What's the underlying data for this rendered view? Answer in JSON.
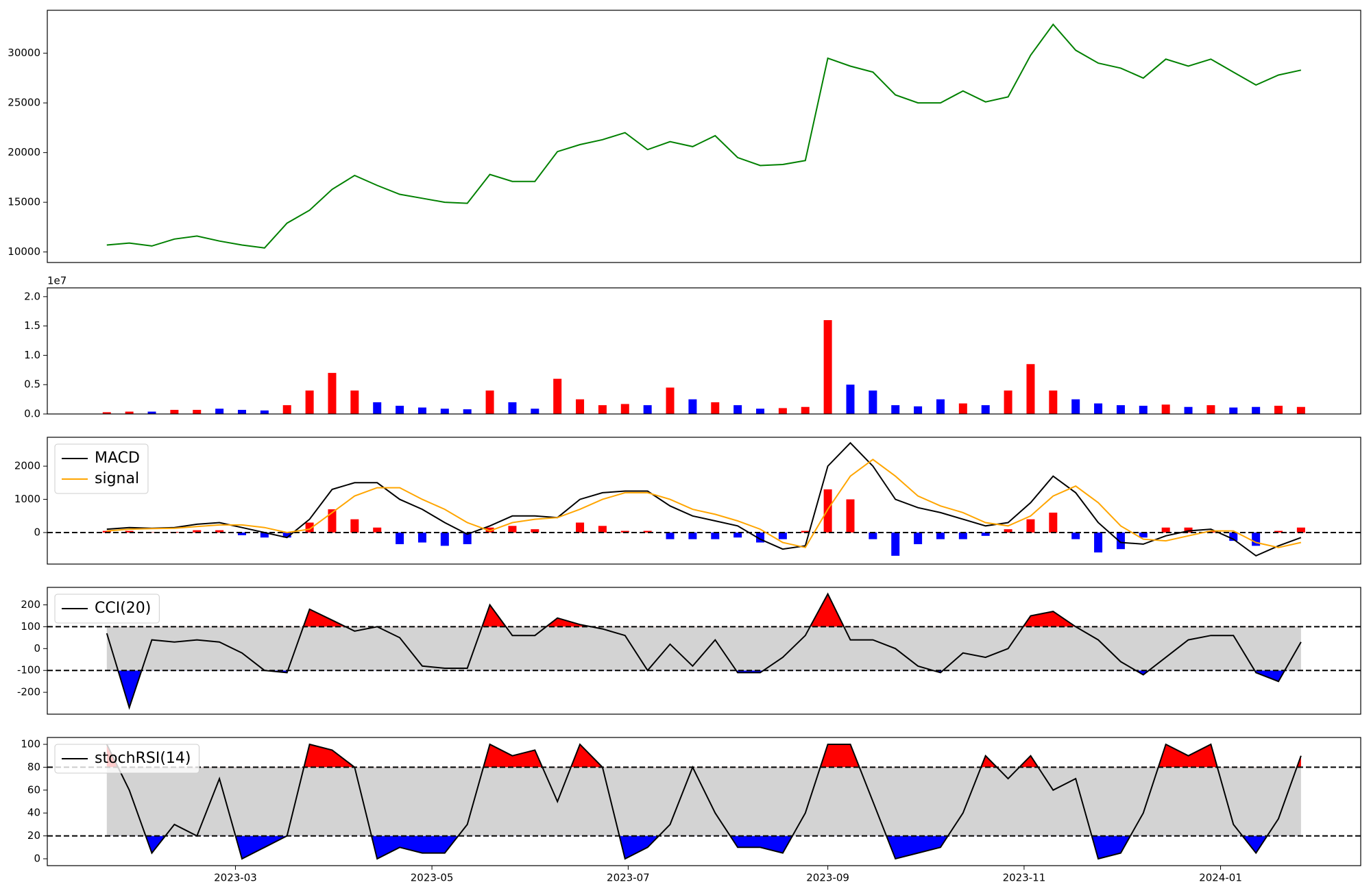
{
  "chart_data": [
    {
      "type": "line",
      "color": "green",
      "values": [
        10700,
        10900,
        10600,
        11300,
        11600,
        11100,
        10700,
        10400,
        12900,
        14200,
        16300,
        17700,
        16700,
        15800,
        15400,
        15000,
        14900,
        17800,
        17100,
        17100,
        20100,
        20800,
        21300,
        22000,
        20300,
        21100,
        20600,
        21700,
        19500,
        18700,
        18800,
        19200,
        29500,
        28700,
        28100,
        25800,
        25000,
        25000,
        26200,
        25100,
        25600,
        29800,
        32900,
        30300,
        29000,
        28500,
        27500,
        29400,
        28700,
        29400,
        28100,
        26800,
        27800,
        28300
      ],
      "xlim": [
        -2.64,
        55.65
      ],
      "ylim": [
        8940,
        34320
      ],
      "yticks": [
        10000,
        15000,
        20000,
        25000,
        30000
      ]
    },
    {
      "type": "bar",
      "offset_label": "1e7",
      "values": [
        300000,
        400000,
        400000,
        700000,
        700000,
        900000,
        700000,
        600000,
        1500000,
        4000000,
        7000000,
        4000000,
        2000000,
        1400000,
        1100000,
        900000,
        800000,
        4000000,
        2000000,
        900000,
        6000000,
        2500000,
        1500000,
        1700000,
        1500000,
        4500000,
        2500000,
        2000000,
        1500000,
        900000,
        1000000,
        1200000,
        16000000,
        5000000,
        4000000,
        1500000,
        1300000,
        2500000,
        1800000,
        1500000,
        4000000,
        8500000,
        4000000,
        2500000,
        1800000,
        1500000,
        1400000,
        1600000,
        1200000,
        1500000,
        1100000,
        1200000,
        1400000,
        1200000
      ],
      "colors": [
        "red",
        "red",
        "blue",
        "red",
        "red",
        "blue",
        "blue",
        "blue",
        "red",
        "red",
        "red",
        "red",
        "blue",
        "blue",
        "blue",
        "blue",
        "blue",
        "red",
        "blue",
        "blue",
        "red",
        "red",
        "red",
        "red",
        "blue",
        "red",
        "blue",
        "red",
        "blue",
        "blue",
        "red",
        "red",
        "red",
        "blue",
        "blue",
        "blue",
        "blue",
        "blue",
        "red",
        "blue",
        "red",
        "red",
        "red",
        "blue",
        "blue",
        "blue",
        "blue",
        "red",
        "blue",
        "red",
        "blue",
        "blue",
        "red",
        "red"
      ],
      "xlim": [
        -2.64,
        55.65
      ],
      "ylim": [
        0,
        21500000
      ],
      "yticks": [
        {
          "value": 0,
          "label": "0.0"
        },
        {
          "value": 5000000,
          "label": "0.5"
        },
        {
          "value": 10000000,
          "label": "1.0"
        },
        {
          "value": 15000000,
          "label": "1.5"
        },
        {
          "value": 20000000,
          "label": "2.0"
        }
      ]
    },
    {
      "type": "macd",
      "legend": "upper left",
      "hlines": [
        0
      ],
      "series": [
        {
          "name": "MACD",
          "color": "black",
          "values": [
            100,
            150,
            130,
            150,
            250,
            300,
            150,
            0,
            -150,
            400,
            1300,
            1500,
            1500,
            1000,
            700,
            300,
            -50,
            200,
            500,
            500,
            450,
            1000,
            1200,
            1250,
            1250,
            800,
            500,
            350,
            200,
            -200,
            -500,
            -400,
            2000,
            2700,
            2000,
            1000,
            750,
            600,
            400,
            200,
            300,
            900,
            1700,
            1200,
            300,
            -300,
            -350,
            -100,
            50,
            100,
            -200,
            -700,
            -400,
            -150
          ]
        },
        {
          "name": "signal",
          "color": "orange",
          "values": [
            50,
            100,
            120,
            130,
            180,
            230,
            230,
            150,
            0,
            100,
            600,
            1100,
            1350,
            1350,
            1000,
            700,
            300,
            50,
            300,
            400,
            450,
            700,
            1000,
            1200,
            1200,
            1000,
            700,
            550,
            350,
            100,
            -300,
            -450,
            700,
            1700,
            2200,
            1700,
            1100,
            800,
            600,
            300,
            200,
            500,
            1100,
            1400,
            900,
            200,
            -200,
            -250,
            -100,
            50,
            50,
            -300,
            -450,
            -300
          ]
        }
      ],
      "histogram": {
        "pos_color": "red",
        "neg_color": "blue",
        "values": [
          50,
          50,
          10,
          20,
          70,
          70,
          -80,
          -150,
          -150,
          300,
          700,
          400,
          150,
          -350,
          -300,
          -400,
          -350,
          150,
          200,
          100,
          0,
          300,
          200,
          50,
          50,
          -200,
          -200,
          -200,
          -150,
          -300,
          -200,
          50,
          1300,
          1000,
          -200,
          -700,
          -350,
          -200,
          -200,
          -100,
          100,
          400,
          600,
          -200,
          -600,
          -500,
          -150,
          150,
          150,
          50,
          -250,
          -400,
          50,
          150
        ]
      },
      "xlim": [
        -2.64,
        55.65
      ],
      "ylim": [
        -950,
        2870
      ],
      "yticks": [
        0,
        1000,
        2000
      ]
    },
    {
      "type": "band",
      "legend": "upper left",
      "thresholds": [
        -100,
        100
      ],
      "band_color": "lightgray",
      "upper_color": "red",
      "lower_color": "blue",
      "series": [
        {
          "name": "CCI(20)",
          "color": "black",
          "values": [
            70,
            -270,
            40,
            30,
            40,
            30,
            -20,
            -100,
            -110,
            180,
            130,
            80,
            100,
            50,
            -80,
            -90,
            -90,
            200,
            60,
            60,
            140,
            110,
            90,
            60,
            -100,
            20,
            -80,
            40,
            -110,
            -110,
            -40,
            60,
            250,
            40,
            40,
            0,
            -80,
            -110,
            -20,
            -40,
            0,
            150,
            170,
            100,
            40,
            -60,
            -120,
            -40,
            40,
            60,
            60,
            -110,
            -150,
            30
          ]
        }
      ],
      "xlim": [
        -2.64,
        55.65
      ],
      "ylim": [
        -300,
        280
      ],
      "yticks": [
        -200,
        -100,
        0,
        100,
        200
      ]
    },
    {
      "type": "band",
      "legend": "upper left",
      "thresholds": [
        20,
        80
      ],
      "band_color": "lightgray",
      "upper_color": "red",
      "lower_color": "blue",
      "series": [
        {
          "name": "stochRSI(14)",
          "color": "black",
          "values": [
            100,
            60,
            5,
            30,
            20,
            70,
            0,
            10,
            20,
            100,
            95,
            80,
            0,
            10,
            5,
            5,
            30,
            100,
            90,
            95,
            50,
            100,
            80,
            0,
            10,
            30,
            80,
            40,
            10,
            10,
            5,
            40,
            100,
            100,
            50,
            0,
            5,
            10,
            40,
            90,
            70,
            90,
            60,
            70,
            0,
            5,
            40,
            100,
            90,
            100,
            30,
            5,
            35,
            90
          ]
        }
      ],
      "xlim": [
        -2.64,
        55.65
      ],
      "ylim": [
        -6,
        106
      ],
      "yticks": [
        0,
        20,
        40,
        60,
        80,
        100
      ],
      "xticks": [
        {
          "value": 5.71,
          "label": "2023-03"
        },
        {
          "value": 14.43,
          "label": "2023-05"
        },
        {
          "value": 23.14,
          "label": "2023-07"
        },
        {
          "value": 32,
          "label": "2023-09"
        },
        {
          "value": 40.71,
          "label": "2023-11"
        },
        {
          "value": 49.43,
          "label": "2024-01"
        }
      ]
    }
  ]
}
